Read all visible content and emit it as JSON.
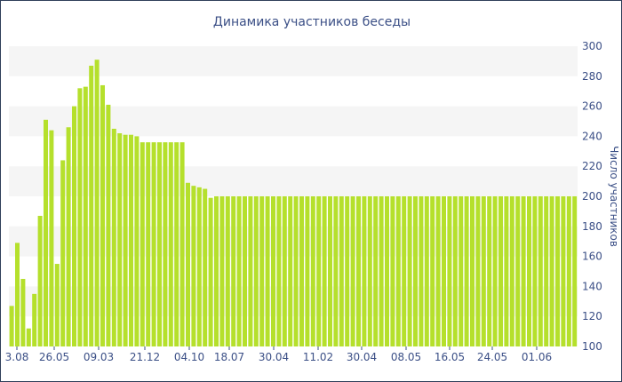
{
  "chart_data": {
    "type": "bar",
    "title": "Динамика участников беседы",
    "ylabel": "Число участников",
    "xlabel": "",
    "ylim": [
      100,
      300
    ],
    "yticks": [
      100,
      120,
      140,
      160,
      180,
      200,
      220,
      240,
      260,
      280,
      300
    ],
    "x_tick_labels": [
      "3.08",
      "26.05",
      "09.03",
      "21.12",
      "04.10",
      "18.07",
      "30.04",
      "11.02",
      "30.04",
      "08.05",
      "16.05",
      "24.05",
      "01.06"
    ],
    "grid": "horizontal-bands",
    "bar_color": "#b5e02c",
    "band_color": "#f5f5f5",
    "text_color": "#3b4f86",
    "values": [
      127,
      169,
      145,
      112,
      135,
      187,
      251,
      244,
      155,
      224,
      246,
      260,
      272,
      273,
      287,
      291,
      274,
      261,
      245,
      242,
      241,
      241,
      240,
      236,
      236,
      236,
      236,
      236,
      236,
      236,
      236,
      209,
      207,
      206,
      205,
      199,
      200,
      200,
      200,
      200,
      200,
      200,
      200,
      200,
      200,
      200,
      200,
      200,
      200,
      200,
      200,
      200,
      200,
      200,
      200,
      200,
      200,
      200,
      200,
      200,
      200,
      200,
      200,
      200,
      200,
      200,
      200,
      200,
      200,
      200,
      200,
      200,
      200,
      200,
      200,
      200,
      200,
      200,
      200,
      200,
      200,
      200,
      200,
      200,
      200,
      200,
      200,
      200,
      200,
      200,
      200,
      200,
      200,
      200,
      200,
      200,
      200,
      200,
      200,
      200
    ]
  }
}
